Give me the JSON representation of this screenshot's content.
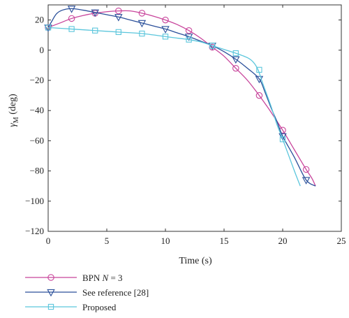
{
  "chart_data": {
    "type": "line",
    "title": "",
    "xlabel": "Time (s)",
    "ylabel": "γM (deg)",
    "ylabel_main": "γ",
    "ylabel_sub": "M",
    "ylabel_unit": " (deg)",
    "xlim": [
      0,
      25
    ],
    "ylim": [
      -120,
      30
    ],
    "xticks": [
      0,
      5,
      10,
      15,
      20,
      25
    ],
    "yticks": [
      20,
      0,
      -20,
      -40,
      -60,
      -80,
      -100,
      -120
    ],
    "xtick_labels": [
      "0",
      "5",
      "10",
      "15",
      "20",
      "25"
    ],
    "ytick_labels": [
      "20",
      "0",
      "−20",
      "−40",
      "−60",
      "−80",
      "−100",
      "−120"
    ],
    "grid": false,
    "legend_position": "below",
    "series": [
      {
        "name": "BPN N = 3",
        "legend_plain": "BPN ",
        "legend_italic": "N",
        "legend_rest": " = 3",
        "color": "#c8449b",
        "marker": "circle",
        "line": [
          [
            0,
            15
          ],
          [
            1,
            18
          ],
          [
            2,
            21
          ],
          [
            3,
            23
          ],
          [
            4,
            24.5
          ],
          [
            5,
            25.5
          ],
          [
            6,
            26
          ],
          [
            7,
            26
          ],
          [
            8,
            24.5
          ],
          [
            9,
            22.5
          ],
          [
            10,
            20
          ],
          [
            11,
            17
          ],
          [
            12,
            13
          ],
          [
            13,
            8
          ],
          [
            14,
            2
          ],
          [
            15,
            -4
          ],
          [
            16,
            -12
          ],
          [
            17,
            -20
          ],
          [
            18,
            -30
          ],
          [
            19,
            -41
          ],
          [
            20,
            -53
          ],
          [
            21,
            -66
          ],
          [
            22,
            -79
          ],
          [
            22.5,
            -85
          ],
          [
            22.8,
            -90
          ]
        ],
        "markers": [
          [
            0,
            15
          ],
          [
            2,
            21
          ],
          [
            4,
            24.5
          ],
          [
            6,
            26
          ],
          [
            8,
            24.5
          ],
          [
            10,
            20
          ],
          [
            12,
            13
          ],
          [
            14,
            2
          ],
          [
            16,
            -12
          ],
          [
            18,
            -30
          ],
          [
            20,
            -53
          ],
          [
            22,
            -79
          ]
        ]
      },
      {
        "name": "See reference [28]",
        "legend_plain": "See reference [28]",
        "legend_italic": "",
        "legend_rest": "",
        "color": "#2a4f9a",
        "marker": "triangle-down",
        "line": [
          [
            0,
            15
          ],
          [
            0.3,
            19
          ],
          [
            0.7,
            24
          ],
          [
            1.2,
            26.5
          ],
          [
            2,
            27.5
          ],
          [
            3,
            26.5
          ],
          [
            4,
            25
          ],
          [
            5,
            23.5
          ],
          [
            6,
            22
          ],
          [
            7,
            20
          ],
          [
            8,
            18
          ],
          [
            9,
            16
          ],
          [
            10,
            14
          ],
          [
            11,
            11.5
          ],
          [
            12,
            9
          ],
          [
            13,
            6
          ],
          [
            14,
            3
          ],
          [
            15,
            -1
          ],
          [
            16,
            -6
          ],
          [
            17,
            -12
          ],
          [
            18,
            -19
          ],
          [
            18.5,
            -28
          ],
          [
            19,
            -38
          ],
          [
            19.5,
            -47
          ],
          [
            20,
            -57
          ],
          [
            21,
            -71
          ],
          [
            22,
            -86
          ],
          [
            22.8,
            -90
          ]
        ],
        "markers": [
          [
            0,
            15
          ],
          [
            2,
            27.5
          ],
          [
            4,
            25
          ],
          [
            6,
            22
          ],
          [
            8,
            18
          ],
          [
            10,
            14
          ],
          [
            12,
            9
          ],
          [
            14,
            3
          ],
          [
            16,
            -6
          ],
          [
            18,
            -19
          ],
          [
            20,
            -57
          ],
          [
            22,
            -86
          ]
        ]
      },
      {
        "name": "Proposed",
        "legend_plain": "Proposed",
        "legend_italic": "",
        "legend_rest": "",
        "color": "#5bc6dc",
        "marker": "square",
        "line": [
          [
            0,
            15
          ],
          [
            2,
            14
          ],
          [
            4,
            13
          ],
          [
            6,
            12
          ],
          [
            8,
            11
          ],
          [
            10,
            9
          ],
          [
            11,
            8
          ],
          [
            12,
            7
          ],
          [
            13,
            5.5
          ],
          [
            14,
            3
          ],
          [
            15,
            0.5
          ],
          [
            16,
            -2
          ],
          [
            17,
            -5
          ],
          [
            17.5,
            -8
          ],
          [
            17.9,
            -13
          ],
          [
            18.3,
            -22
          ],
          [
            19,
            -37
          ],
          [
            19.5,
            -49
          ],
          [
            20,
            -59
          ],
          [
            21,
            -80
          ],
          [
            21.5,
            -90
          ]
        ],
        "markers": [
          [
            0,
            15
          ],
          [
            2,
            14
          ],
          [
            4,
            13
          ],
          [
            6,
            12
          ],
          [
            8,
            11
          ],
          [
            10,
            9
          ],
          [
            12,
            7
          ],
          [
            14,
            3
          ],
          [
            16,
            -2
          ],
          [
            18,
            -13
          ],
          [
            20,
            -59
          ]
        ]
      }
    ]
  }
}
